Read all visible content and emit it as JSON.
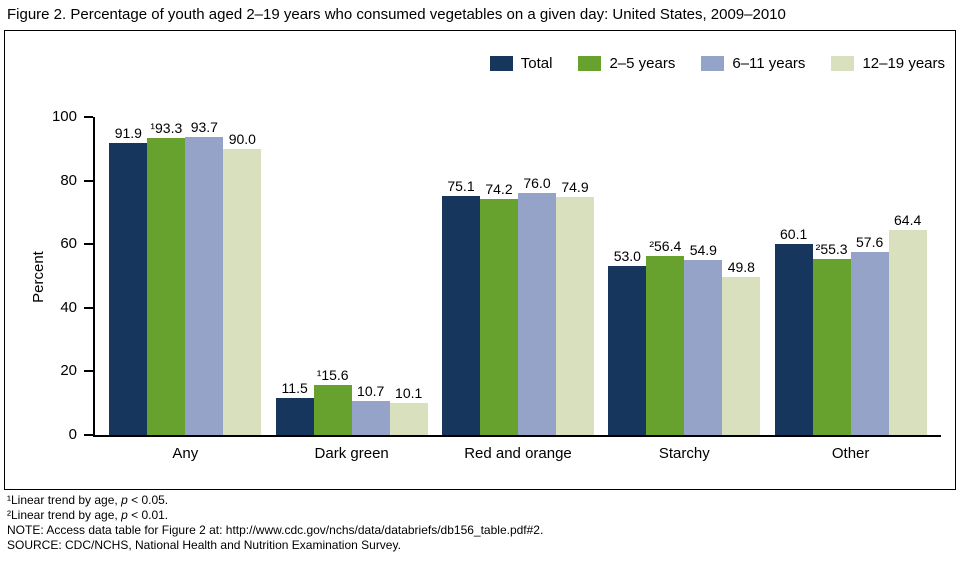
{
  "chart_data": {
    "type": "bar",
    "title": "Figure 2. Percentage of youth aged 2–19 years who consumed vegetables on a given day: United States, 2009–2010",
    "categories": [
      "Any",
      "Dark green",
      "Red and orange",
      "Starchy",
      "Other"
    ],
    "series": [
      {
        "name": "Total",
        "color": "#17365D",
        "values": [
          91.9,
          11.5,
          75.1,
          53.0,
          60.1
        ],
        "labels": [
          "91.9",
          "11.5",
          "75.1",
          "53.0",
          "60.1"
        ]
      },
      {
        "name": "2–5 years",
        "color": "#67A22E",
        "values": [
          93.3,
          15.6,
          74.2,
          56.4,
          55.3
        ],
        "labels": [
          "¹93.3",
          "¹15.6",
          "74.2",
          "²56.4",
          "²55.3"
        ]
      },
      {
        "name": "6–11 years",
        "color": "#95A3C8",
        "values": [
          93.7,
          10.7,
          76.0,
          54.9,
          57.6
        ],
        "labels": [
          "93.7",
          "10.7",
          "76.0",
          "54.9",
          "57.6"
        ]
      },
      {
        "name": "12–19 years",
        "color": "#D8E0BE",
        "values": [
          90.0,
          10.1,
          74.9,
          49.8,
          64.4
        ],
        "labels": [
          "90.0",
          "10.1",
          "74.9",
          "49.8",
          "64.4"
        ]
      }
    ],
    "xlabel": "",
    "ylabel": "Percent",
    "ylim": [
      0,
      100
    ],
    "yticks": [
      0,
      20,
      40,
      60,
      80,
      100
    ],
    "legend_position": "top-right",
    "grid": false
  },
  "footnotes": [
    {
      "pre": "¹Linear trend by age, ",
      "italic": "p",
      "post": " < 0.05."
    },
    {
      "pre": "²Linear trend by age, ",
      "italic": "p",
      "post": " < 0.01."
    },
    {
      "pre": "NOTE: Access data table for Figure 2 at: http://www.cdc.gov/nchs/data/databriefs/db156_table.pdf#2.",
      "italic": "",
      "post": ""
    },
    {
      "pre": "SOURCE: CDC/NCHS, National Health and Nutrition Examination Survey.",
      "italic": "",
      "post": ""
    }
  ]
}
